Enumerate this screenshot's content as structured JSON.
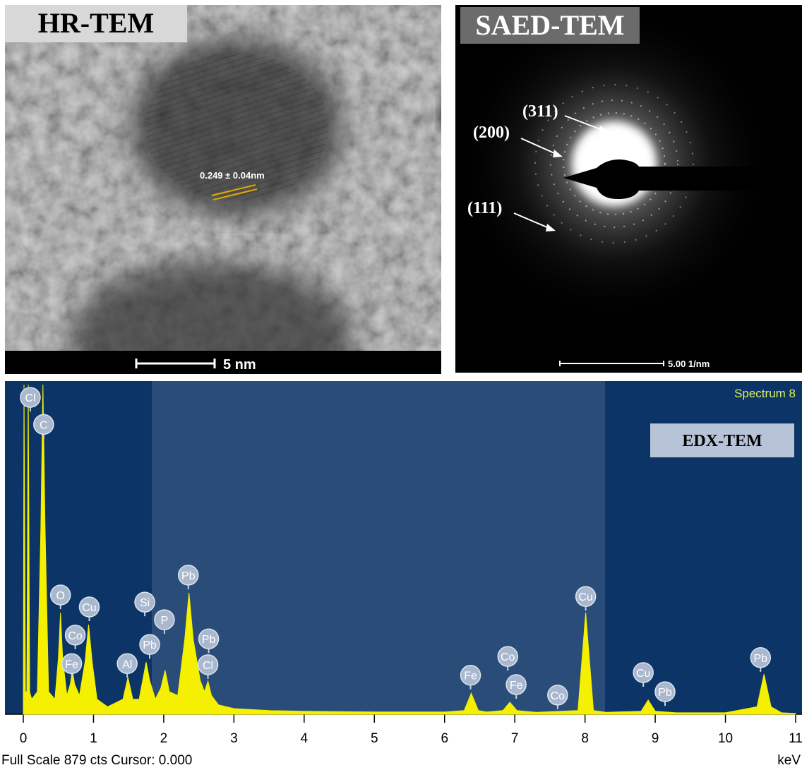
{
  "hrtem": {
    "label": "HR-TEM",
    "measurement": "0.249 ± 0.04nm",
    "scale_bar": "5 nm"
  },
  "saed": {
    "label": "SAED-TEM",
    "planes": [
      "(311)",
      "(200)",
      "(111)"
    ],
    "scale_bar": "5.00 1/nm"
  },
  "chart_data": {
    "type": "area",
    "title": "EDX-TEM",
    "subtitle": "Spectrum 8",
    "x_label": "keV",
    "footer": "Full Scale 879 cts Cursor: 0.000",
    "x": [
      0,
      0.01,
      0.03,
      0.05,
      0.07,
      0.09,
      0.12,
      0.2,
      0.25,
      0.28,
      0.31,
      0.36,
      0.45,
      0.5,
      0.53,
      0.56,
      0.62,
      0.67,
      0.7,
      0.73,
      0.8,
      0.88,
      0.93,
      0.98,
      1.05,
      1.2,
      1.42,
      1.49,
      1.56,
      1.65,
      1.7,
      1.75,
      1.8,
      1.88,
      1.96,
      2.02,
      2.08,
      2.2,
      2.3,
      2.36,
      2.42,
      2.52,
      2.58,
      2.63,
      2.68,
      2.78,
      3,
      3.5,
      4,
      5,
      6,
      6.28,
      6.38,
      6.48,
      6.6,
      6.83,
      6.93,
      7.03,
      7.3,
      7.9,
      8.01,
      8.12,
      8.3,
      8.8,
      8.9,
      9,
      9.3,
      10,
      10.45,
      10.55,
      10.65,
      10.8,
      11
    ],
    "values": [
      10,
      879,
      60,
      60,
      879,
      60,
      40,
      60,
      500,
      879,
      500,
      60,
      40,
      150,
      271,
      150,
      50,
      80,
      117,
      80,
      50,
      140,
      239,
      140,
      40,
      20,
      40,
      98,
      40,
      40,
      90,
      139,
      90,
      40,
      70,
      117,
      60,
      50,
      200,
      324,
      200,
      90,
      60,
      88,
      50,
      25,
      15,
      10,
      8,
      6,
      6,
      10,
      56,
      10,
      6,
      10,
      32,
      10,
      5,
      10,
      271,
      10,
      5,
      8,
      38,
      8,
      4,
      4,
      20,
      107,
      20,
      4,
      2
    ],
    "color": "#f5f000",
    "xlim": [
      0,
      11
    ],
    "ylim": [
      0,
      879
    ],
    "xticks": [
      0,
      1,
      2,
      3,
      4,
      5,
      6,
      7,
      8,
      9,
      10,
      11
    ],
    "annotations": [
      {
        "text": "Cl",
        "x": 0.1,
        "y": 845
      },
      {
        "text": "C",
        "x": 0.29,
        "y": 773
      },
      {
        "text": "O",
        "x": 0.53,
        "y": 318
      },
      {
        "text": "Cu",
        "x": 0.94,
        "y": 286
      },
      {
        "text": "Co",
        "x": 0.74,
        "y": 211
      },
      {
        "text": "Fe",
        "x": 0.69,
        "y": 135
      },
      {
        "text": "Si",
        "x": 1.73,
        "y": 299
      },
      {
        "text": "P",
        "x": 2.01,
        "y": 252
      },
      {
        "text": "Pb",
        "x": 1.8,
        "y": 186
      },
      {
        "text": "Al",
        "x": 1.48,
        "y": 135
      },
      {
        "text": "Pb",
        "x": 2.35,
        "y": 371
      },
      {
        "text": "Pb",
        "x": 2.64,
        "y": 201
      },
      {
        "text": "Cl",
        "x": 2.63,
        "y": 132
      },
      {
        "text": "Fe",
        "x": 6.37,
        "y": 104
      },
      {
        "text": "Co",
        "x": 6.9,
        "y": 154
      },
      {
        "text": "Fe",
        "x": 7.02,
        "y": 79
      },
      {
        "text": "Co",
        "x": 7.61,
        "y": 51
      },
      {
        "text": "Cu",
        "x": 8.01,
        "y": 314
      },
      {
        "text": "Cu",
        "x": 8.83,
        "y": 111
      },
      {
        "text": "Pb",
        "x": 9.14,
        "y": 60
      },
      {
        "text": "Pb",
        "x": 10.5,
        "y": 151
      }
    ]
  }
}
